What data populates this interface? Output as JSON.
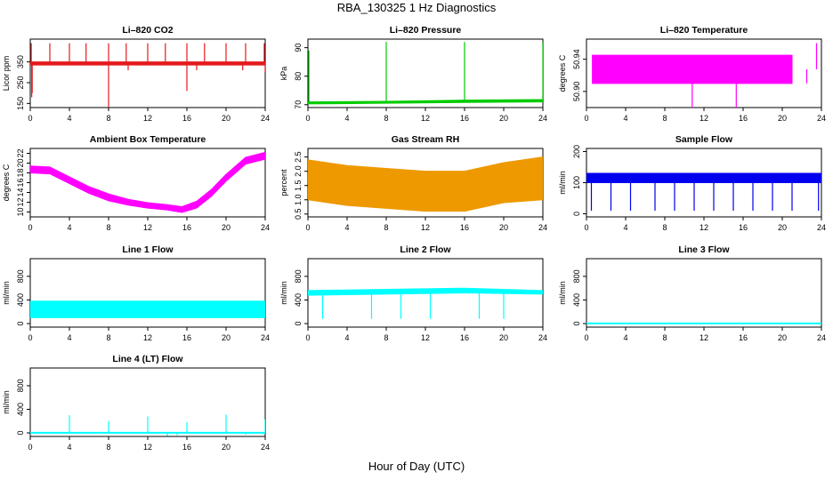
{
  "figure": {
    "title": "RBA_130325  1 Hz Diagnostics",
    "xlabel": "Hour of Day (UTC)"
  },
  "chart_data": [
    {
      "id": "co2",
      "type": "line",
      "title": "Li–820 CO2",
      "ylabel": "Licor ppm",
      "color": "#e41a1c",
      "x_ticks": [
        0,
        4,
        8,
        12,
        16,
        20,
        24
      ],
      "xlim": [
        0,
        24
      ],
      "ylim": [
        130,
        460
      ],
      "y_ticks": [
        150,
        250,
        350
      ],
      "y_tick_labels": [
        "150",
        "250",
        "350"
      ],
      "band": [
        [
          0,
          335,
          350
        ],
        [
          24,
          335,
          350
        ]
      ],
      "spikes_up": [
        [
          0.1,
          440
        ],
        [
          2.0,
          440
        ],
        [
          4.0,
          440
        ],
        [
          5.7,
          440
        ],
        [
          8.0,
          440
        ],
        [
          9.8,
          440
        ],
        [
          12.0,
          440
        ],
        [
          13.8,
          440
        ],
        [
          16.0,
          440
        ],
        [
          17.8,
          440
        ],
        [
          20.0,
          440
        ],
        [
          22.0,
          440
        ],
        [
          23.9,
          440
        ]
      ],
      "spikes_down": [
        [
          0.15,
          180
        ],
        [
          0.2,
          200
        ],
        [
          8.0,
          130
        ],
        [
          10.0,
          310
        ],
        [
          16.0,
          210
        ],
        [
          17.0,
          310
        ],
        [
          21.7,
          310
        ],
        [
          24.0,
          300
        ]
      ]
    },
    {
      "id": "pressure",
      "type": "line",
      "title": "Li–820 Pressure",
      "ylabel": "kPa",
      "color": "#00cc00",
      "x_ticks": [
        0,
        4,
        8,
        12,
        16,
        20,
        24
      ],
      "xlim": [
        0,
        24
      ],
      "ylim": [
        69,
        93
      ],
      "y_ticks": [
        70,
        80,
        90
      ],
      "y_tick_labels": [
        "70",
        "80",
        "90"
      ],
      "band": [
        [
          0,
          70.3,
          71
        ],
        [
          8,
          70.5,
          71.2
        ],
        [
          16,
          70.8,
          71.6
        ],
        [
          24,
          71,
          71.8
        ]
      ],
      "spikes_up": [
        [
          0.1,
          89
        ],
        [
          8.0,
          92
        ],
        [
          16.0,
          92
        ],
        [
          24.0,
          92
        ]
      ],
      "spikes_down": []
    },
    {
      "id": "licor-temp",
      "type": "line",
      "title": "Li–820 Temperature",
      "ylabel": "degrees C",
      "color": "#ff00ff",
      "x_ticks": [
        0,
        4,
        8,
        12,
        16,
        20,
        24
      ],
      "xlim": [
        0,
        24
      ],
      "ylim": [
        50.88,
        50.965
      ],
      "y_ticks": [
        50.9,
        50.94
      ],
      "y_tick_labels": [
        "50.90",
        "50.94"
      ],
      "band": [
        [
          0.6,
          50.91,
          50.945
        ],
        [
          21,
          50.91,
          50.945
        ]
      ],
      "spikes_up": [
        [
          23.5,
          50.96
        ]
      ],
      "spikes_down": [
        [
          10.8,
          50.88
        ],
        [
          15.3,
          50.88
        ],
        [
          22.5,
          50.91
        ]
      ]
    },
    {
      "id": "box-temp",
      "type": "line",
      "title": "Ambient Box Temperature",
      "ylabel": "degrees C",
      "color": "#ff00ff",
      "x_ticks": [
        0,
        4,
        8,
        12,
        16,
        20,
        24
      ],
      "xlim": [
        0,
        24
      ],
      "ylim": [
        9,
        23
      ],
      "y_ticks": [
        10,
        12,
        14,
        16,
        18,
        20,
        22
      ],
      "y_tick_labels": [
        "10",
        "12",
        "14",
        "16",
        "18",
        "20",
        "22"
      ],
      "band": [
        [
          0,
          18,
          19.4
        ],
        [
          2,
          17.8,
          19.2
        ],
        [
          4,
          15.8,
          17.2
        ],
        [
          6,
          13.8,
          15.2
        ],
        [
          8,
          12.3,
          13.7
        ],
        [
          10,
          11.4,
          12.6
        ],
        [
          12,
          10.8,
          11.9
        ],
        [
          14,
          10.4,
          11.5
        ],
        [
          15.5,
          9.9,
          11.1
        ],
        [
          17,
          10.8,
          12.2
        ],
        [
          18.5,
          13.2,
          14.6
        ],
        [
          20,
          16.3,
          17.7
        ],
        [
          22,
          19.8,
          21.2
        ],
        [
          24,
          20.8,
          22.2
        ]
      ],
      "spikes_up": [],
      "spikes_down": []
    },
    {
      "id": "rh",
      "type": "line",
      "title": "Gas Stream RH",
      "ylabel": "percent",
      "color": "#ee9900",
      "x_ticks": [
        0,
        4,
        8,
        12,
        16,
        20,
        24
      ],
      "xlim": [
        0,
        24
      ],
      "ylim": [
        0.4,
        2.8
      ],
      "y_ticks": [
        0.5,
        1.0,
        1.5,
        2.0,
        2.5
      ],
      "y_tick_labels": [
        "0.5",
        "1.0",
        "1.5",
        "2.0",
        "2.5"
      ],
      "band": [
        [
          0,
          1.0,
          2.4
        ],
        [
          4,
          0.8,
          2.2
        ],
        [
          8,
          0.7,
          2.1
        ],
        [
          12,
          0.6,
          2.0
        ],
        [
          16,
          0.6,
          2.0
        ],
        [
          20,
          0.9,
          2.3
        ],
        [
          24,
          1.0,
          2.5
        ]
      ],
      "spikes_up": [],
      "spikes_down": []
    },
    {
      "id": "sample-flow",
      "type": "line",
      "title": "Sample Flow",
      "ylabel": "ml/min",
      "color": "#0000ee",
      "x_ticks": [
        0,
        4,
        8,
        12,
        16,
        20,
        24
      ],
      "xlim": [
        0,
        24
      ],
      "ylim": [
        -10,
        210
      ],
      "y_ticks": [
        0,
        100,
        200
      ],
      "y_tick_labels": [
        "0",
        "100",
        "200"
      ],
      "band": [
        [
          0,
          100,
          130
        ],
        [
          24,
          100,
          130
        ]
      ],
      "spikes_up": [],
      "spikes_down": [
        [
          0.5,
          10
        ],
        [
          2.5,
          10
        ],
        [
          4.5,
          10
        ],
        [
          7,
          10
        ],
        [
          9,
          10
        ],
        [
          11,
          10
        ],
        [
          13,
          10
        ],
        [
          15,
          10
        ],
        [
          17,
          10
        ],
        [
          19,
          10
        ],
        [
          21,
          10
        ],
        [
          23.7,
          10
        ]
      ]
    },
    {
      "id": "line1-flow",
      "type": "line",
      "title": "Line 1 Flow",
      "ylabel": "ml/min",
      "color": "#00ffff",
      "x_ticks": [
        0,
        4,
        8,
        12,
        16,
        20,
        24
      ],
      "xlim": [
        0,
        24
      ],
      "ylim": [
        -60,
        1100
      ],
      "y_ticks": [
        0,
        400,
        800
      ],
      "y_tick_labels": [
        "0",
        "400",
        "800"
      ],
      "band": [
        [
          0,
          100,
          380
        ],
        [
          24,
          100,
          380
        ]
      ],
      "spikes_up": [],
      "spikes_down": []
    },
    {
      "id": "line2-flow",
      "type": "line",
      "title": "Line 2 Flow",
      "ylabel": "ml/min",
      "color": "#00ffff",
      "x_ticks": [
        0,
        4,
        8,
        12,
        16,
        20,
        24
      ],
      "xlim": [
        0,
        24
      ],
      "ylim": [
        -60,
        1100
      ],
      "y_ticks": [
        0,
        400,
        800
      ],
      "y_tick_labels": [
        "0",
        "400",
        "800"
      ],
      "band": [
        [
          0,
          480,
          560
        ],
        [
          8,
          500,
          580
        ],
        [
          16,
          520,
          600
        ],
        [
          24,
          500,
          560
        ]
      ],
      "spikes_up": [],
      "spikes_down": [
        [
          1.5,
          80
        ],
        [
          6.5,
          80
        ],
        [
          9.5,
          80
        ],
        [
          12.5,
          80
        ],
        [
          17.5,
          80
        ],
        [
          20,
          80
        ]
      ]
    },
    {
      "id": "line3-flow",
      "type": "line",
      "title": "Line 3 Flow",
      "ylabel": "ml/min",
      "color": "#00ffff",
      "x_ticks": [
        0,
        4,
        8,
        12,
        16,
        20,
        24
      ],
      "xlim": [
        0,
        24
      ],
      "ylim": [
        -60,
        1100
      ],
      "y_ticks": [
        0,
        400,
        800
      ],
      "y_tick_labels": [
        "0",
        "400",
        "800"
      ],
      "band": [
        [
          0,
          -5,
          10
        ],
        [
          24,
          -5,
          10
        ]
      ],
      "spikes_up": [],
      "spikes_down": []
    },
    {
      "id": "line4-flow",
      "type": "line",
      "title": "Line 4 (LT) Flow",
      "ylabel": "ml/min",
      "color": "#00ffff",
      "x_ticks": [
        0,
        4,
        8,
        12,
        16,
        20,
        24
      ],
      "xlim": [
        0,
        24
      ],
      "ylim": [
        -60,
        1100
      ],
      "y_ticks": [
        0,
        400,
        800
      ],
      "y_tick_labels": [
        "0",
        "400",
        "800"
      ],
      "band": [
        [
          0,
          -5,
          10
        ],
        [
          24,
          -5,
          10
        ]
      ],
      "spikes_up": [
        [
          4.0,
          300
        ],
        [
          8.0,
          200
        ],
        [
          12.0,
          280
        ],
        [
          16.0,
          180
        ],
        [
          20.0,
          310
        ],
        [
          24.0,
          230
        ]
      ],
      "spikes_down": [
        [
          14.0,
          -50
        ],
        [
          15.0,
          -40
        ],
        [
          22.0,
          -30
        ]
      ]
    }
  ]
}
